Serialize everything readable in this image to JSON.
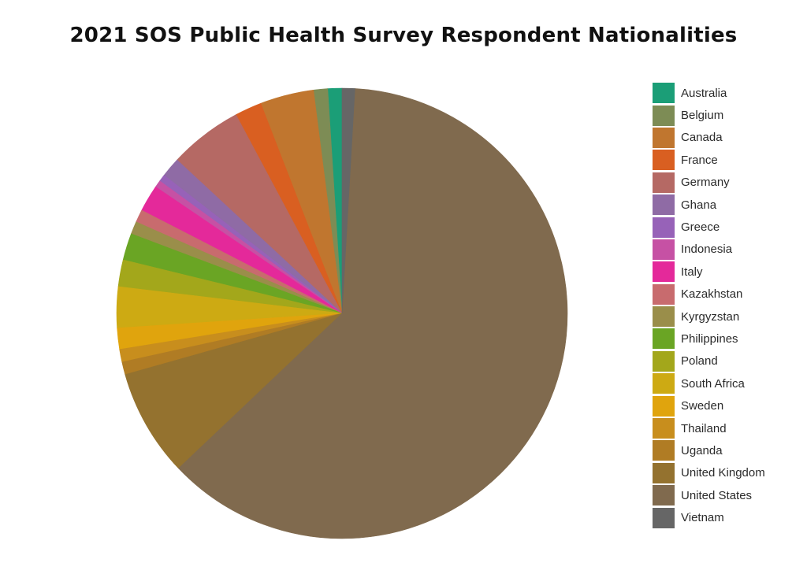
{
  "chart_data": {
    "type": "pie",
    "title": "2021 SOS Public Health Survey Respondent Nationalities",
    "legend_position": "right",
    "slices": [
      {
        "label": "Australia",
        "value": 1.0,
        "color": "#1b9e77"
      },
      {
        "label": "Belgium",
        "value": 1.0,
        "color": "#7d8c55"
      },
      {
        "label": "Canada",
        "value": 3.8,
        "color": "#c0762f"
      },
      {
        "label": "France",
        "value": 1.9,
        "color": "#d95f21"
      },
      {
        "label": "Germany",
        "value": 5.2,
        "color": "#b56964"
      },
      {
        "label": "Ghana",
        "value": 1.4,
        "color": "#8f6ba5"
      },
      {
        "label": "Greece",
        "value": 0.5,
        "color": "#9762b8"
      },
      {
        "label": "Indonesia",
        "value": 0.5,
        "color": "#c651a4"
      },
      {
        "label": "Italy",
        "value": 1.9,
        "color": "#e4299a"
      },
      {
        "label": "Kazakhstan",
        "value": 0.9,
        "color": "#c86b6e"
      },
      {
        "label": "Kyrgyzstan",
        "value": 0.9,
        "color": "#9a8e4a"
      },
      {
        "label": "Philippines",
        "value": 1.9,
        "color": "#6aa524"
      },
      {
        "label": "Poland",
        "value": 1.9,
        "color": "#a3a71b"
      },
      {
        "label": "South Africa",
        "value": 2.9,
        "color": "#cdaa13"
      },
      {
        "label": "Sweden",
        "value": 1.5,
        "color": "#e0a40d"
      },
      {
        "label": "Thailand",
        "value": 0.9,
        "color": "#c88e1d"
      },
      {
        "label": "Uganda",
        "value": 0.9,
        "color": "#b07c24"
      },
      {
        "label": "United Kingdom",
        "value": 7.6,
        "color": "#94722f"
      },
      {
        "label": "United States",
        "value": 61.2,
        "color": "#806a4e"
      },
      {
        "label": "Vietnam",
        "value": 0.9,
        "color": "#666666"
      }
    ]
  }
}
